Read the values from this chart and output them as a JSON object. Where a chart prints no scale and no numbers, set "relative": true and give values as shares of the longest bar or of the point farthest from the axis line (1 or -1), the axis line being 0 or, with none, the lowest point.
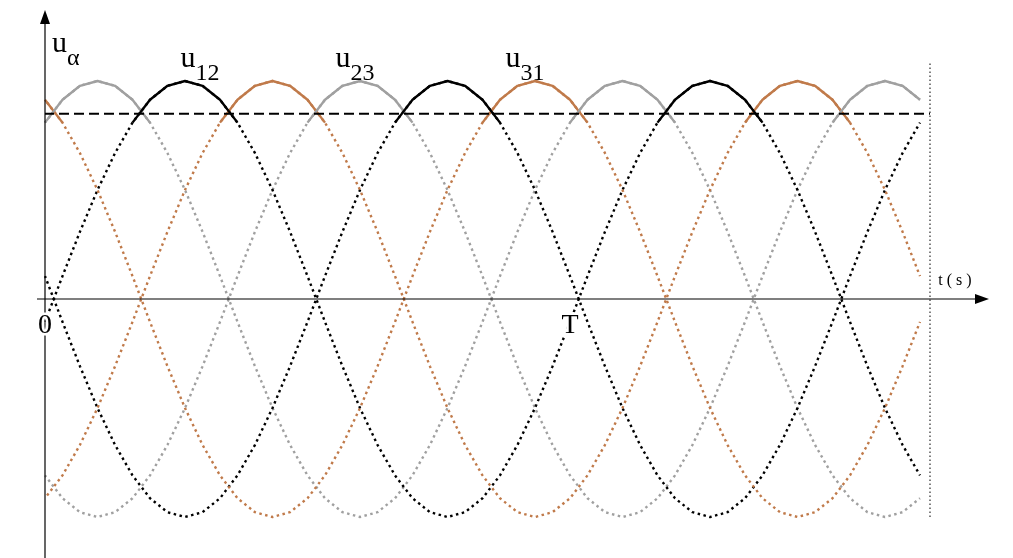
{
  "chart_data": {
    "type": "line",
    "relative": true,
    "xlabel": "t ( s )",
    "ylabel": "u$_{α}$",
    "tick_labels": "x",
    "grid": false,
    "categories": [
      "0",
      null,
      null,
      null,
      null,
      null,
      null,
      null,
      null,
      null,
      null,
      null,
      null,
      null,
      null,
      null,
      null,
      null,
      null,
      null,
      null,
      null,
      null,
      null,
      null,
      null,
      null,
      null,
      null,
      null,
      "T",
      null,
      null,
      null,
      null,
      null,
      null,
      null,
      null,
      null,
      null,
      null,
      null,
      null,
      null,
      null,
      null,
      null,
      null,
      null,
      null
    ],
    "series": [
      {
        "color": "#a0a0a0",
        "line_style": "dotted",
        "values": [
          0.809,
          0.914,
          0.978,
          1,
          0.978,
          0.914,
          0.809,
          0.669,
          0.5,
          0.309,
          0.105,
          -0.105,
          -0.309,
          -0.5,
          -0.669,
          -0.809,
          -0.914,
          -0.978,
          -1,
          -0.978,
          -0.914,
          -0.809,
          -0.669,
          -0.5,
          -0.309,
          -0.105,
          0.105,
          0.309,
          0.5,
          0.669,
          0.809,
          0.914,
          0.978,
          1,
          0.978,
          0.914,
          0.809,
          0.669,
          0.5,
          0.309,
          0.105,
          -0.105,
          -0.309,
          -0.5,
          -0.669,
          -0.809,
          -0.914,
          -0.978,
          -1,
          -0.978,
          -0.914
        ]
      },
      {
        "color": "#a0a0a0",
        "line_style": "dotted",
        "values": [
          -0.809,
          -0.914,
          -0.978,
          -1,
          -0.978,
          -0.914,
          -0.809,
          -0.669,
          -0.5,
          -0.309,
          -0.105,
          0.105,
          0.309,
          0.5,
          0.669,
          0.809,
          0.914,
          0.978,
          1,
          0.978,
          0.914,
          0.809,
          0.669,
          0.5,
          0.309,
          0.105,
          -0.105,
          -0.309,
          -0.5,
          -0.669,
          -0.809,
          -0.914,
          -0.978,
          -1,
          -0.978,
          -0.914,
          -0.809,
          -0.669,
          -0.5,
          -0.309,
          -0.105,
          0.105,
          0.309,
          0.5,
          0.669,
          0.809,
          0.914,
          0.978,
          1,
          0.978,
          0.914
        ]
      },
      {
        "color": "#000000",
        "line_style": "dotted",
        "values": [
          -0.105,
          0.105,
          0.309,
          0.5,
          0.669,
          0.809,
          0.914,
          0.978,
          1,
          0.978,
          0.914,
          0.809,
          0.669,
          0.5,
          0.309,
          0.105,
          -0.105,
          -0.309,
          -0.5,
          -0.669,
          -0.809,
          -0.914,
          -0.978,
          -1,
          -0.978,
          -0.914,
          -0.809,
          -0.669,
          -0.5,
          -0.309,
          -0.105,
          0.105,
          0.309,
          0.5,
          0.669,
          0.809,
          0.914,
          0.978,
          1,
          0.978,
          0.914,
          0.809,
          0.669,
          0.5,
          0.309,
          0.105,
          -0.105,
          -0.309,
          -0.5,
          -0.669,
          -0.809
        ]
      },
      {
        "color": "#000000",
        "line_style": "dotted",
        "values": [
          0.105,
          -0.105,
          -0.309,
          -0.5,
          -0.669,
          -0.809,
          -0.914,
          -0.978,
          -1,
          -0.978,
          -0.914,
          -0.809,
          -0.669,
          -0.5,
          -0.309,
          -0.105,
          0.105,
          0.309,
          0.5,
          0.669,
          0.809,
          0.914,
          0.978,
          1,
          0.978,
          0.914,
          0.809,
          0.669,
          0.5,
          0.309,
          0.105,
          -0.105,
          -0.309,
          -0.5,
          -0.669,
          -0.809,
          -0.914,
          -0.978,
          -1,
          -0.978,
          -0.914,
          -0.809,
          -0.669,
          -0.5,
          -0.309,
          -0.105,
          0.105,
          0.309,
          0.5,
          0.669,
          0.809
        ]
      },
      {
        "color": "#c07a4a",
        "line_style": "dotted",
        "values": [
          -0.914,
          -0.809,
          -0.669,
          -0.5,
          -0.309,
          -0.105,
          0.105,
          0.309,
          0.5,
          0.669,
          0.809,
          0.914,
          0.978,
          1,
          0.978,
          0.914,
          0.809,
          0.669,
          0.5,
          0.309,
          0.105,
          -0.105,
          -0.309,
          -0.5,
          -0.669,
          -0.809,
          -0.914,
          -0.978,
          -1,
          -0.978,
          -0.914,
          -0.809,
          -0.669,
          -0.5,
          -0.309,
          -0.105,
          0.105,
          0.309,
          0.5,
          0.669,
          0.809,
          0.914,
          0.978,
          1,
          0.978,
          0.914,
          0.809,
          0.669,
          0.5,
          0.309,
          0.105
        ]
      },
      {
        "color": "#c07a4a",
        "line_style": "dotted",
        "values": [
          0.914,
          0.809,
          0.669,
          0.5,
          0.309,
          0.105,
          -0.105,
          -0.309,
          -0.5,
          -0.669,
          -0.809,
          -0.914,
          -0.978,
          -1,
          -0.978,
          -0.914,
          -0.809,
          -0.669,
          -0.5,
          -0.309,
          -0.105,
          0.105,
          0.309,
          0.5,
          0.669,
          0.809,
          0.914,
          0.978,
          1,
          0.978,
          0.914,
          0.809,
          0.669,
          0.5,
          0.309,
          0.105,
          -0.105,
          -0.309,
          -0.5,
          -0.669,
          -0.809,
          -0.914,
          -0.978,
          -1,
          -0.978,
          -0.914,
          -0.809,
          -0.669,
          -0.5,
          -0.309,
          -0.105
        ]
      },
      {
        "color": "#c07a4a",
        "line_style": "solid",
        "values": [
          0.914,
          0.809,
          null,
          null,
          null,
          null,
          null,
          null,
          null,
          null,
          0.809,
          0.914,
          0.978,
          1,
          0.978,
          0.914,
          0.809,
          null,
          null,
          null,
          null,
          null,
          null,
          null,
          null,
          0.809,
          0.914,
          0.978,
          1,
          0.978,
          0.914,
          0.809,
          null,
          null,
          null,
          null,
          null,
          null,
          null,
          null,
          0.809,
          0.914,
          0.978,
          1,
          0.978,
          0.914,
          0.809,
          null,
          null,
          null,
          null
        ]
      },
      {
        "color": "#a0a0a0",
        "line_style": "solid",
        "values": [
          0.809,
          0.914,
          0.978,
          1,
          0.978,
          0.914,
          0.809,
          null,
          null,
          null,
          null,
          null,
          null,
          null,
          null,
          0.809,
          0.914,
          0.978,
          1,
          0.978,
          0.914,
          0.809,
          null,
          null,
          null,
          null,
          null,
          null,
          null,
          null,
          0.809,
          0.914,
          0.978,
          1,
          0.978,
          0.914,
          0.809,
          null,
          null,
          null,
          null,
          null,
          null,
          null,
          null,
          0.809,
          0.914,
          0.978,
          1,
          0.978,
          0.914
        ]
      },
      {
        "color": "#000000",
        "line_style": "solid",
        "values": [
          null,
          null,
          null,
          null,
          null,
          0.809,
          0.914,
          0.978,
          1,
          0.978,
          0.914,
          0.809,
          null,
          null,
          null,
          null,
          null,
          null,
          null,
          null,
          0.809,
          0.914,
          0.978,
          1,
          0.978,
          0.914,
          0.809,
          null,
          null,
          null,
          null,
          null,
          null,
          null,
          null,
          0.809,
          0.914,
          0.978,
          1,
          0.978,
          0.914,
          0.809,
          null,
          null,
          null,
          null,
          null,
          null,
          null,
          null,
          null
        ]
      }
    ],
    "ref_lines": [
      {
        "axis": "y",
        "value": 0.85,
        "color": "#000000",
        "line_style": "dashed"
      }
    ],
    "annotations": [
      "u$_{12}$",
      "u$_{23}$",
      "u$_{31}$"
    ]
  }
}
